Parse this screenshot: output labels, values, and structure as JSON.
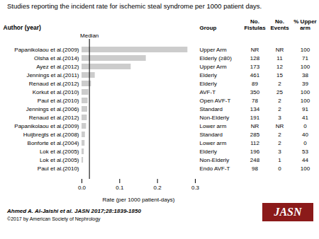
{
  "chart_data": {
    "type": "bar",
    "orientation": "horizontal",
    "title": "Studies reporting the incident rate for ischemic steal syndrome per 1000 patient days.",
    "ylabel": "Author (year)",
    "categories": [
      "Papanikolaou et al.(2009)",
      "Olsha et al.(2014)",
      "Ayez et al.(2012)",
      "Jennings et al.(2011)",
      "Renaud et al.(2012)",
      "Korkut et al.(2010)",
      "Paul et al.(2010)",
      "Jennings et al.(2006)",
      "Renaud et al.(2012)",
      "Papanikolaou et al.(2009)",
      "Huijbregts et al.(2008)",
      "Bonforte et al.(2004)",
      "Lok et al.(2005)",
      "Lok et al.(2005)",
      "Paul et al.(2010)"
    ],
    "values": [
      0.28,
      0.17,
      0.13,
      0.035,
      0.025,
      0.018,
      0.016,
      0.015,
      0.014,
      0.012,
      0.009,
      0.008,
      0.006,
      0.004,
      0.0
    ],
    "color": "#cccccc",
    "xlim": [
      0.0,
      0.3
    ],
    "xticks": [
      {
        "value": 0.0,
        "label": "0.0"
      },
      0.1,
      0.2,
      0.3
    ],
    "xlabel": "Rate (per 1000 patient-days)",
    "grid": false,
    "annotations": [
      {
        "type": "line",
        "x": 0.02,
        "label": "Median",
        "color": "#222222"
      }
    ],
    "table": [
      {
        "header": "Group",
        "values": [
          "Upper Arm",
          "Elderly (≥80)",
          "Upper Arm",
          "Elderly",
          "Elderly",
          "AVF-T",
          "Open AVF-T",
          "Standard",
          "Non-Elderly",
          "Lower arm",
          "Standard",
          "Lower arm",
          "Elderly",
          "Non-Elderly",
          "Endo AVF-T"
        ]
      },
      {
        "header": "No.\nFistulas",
        "values": [
          "NR",
          "128",
          "173",
          "461",
          "89",
          "350",
          "78",
          "134",
          "191",
          "NR",
          "285",
          "112",
          "196",
          "248",
          "98"
        ]
      },
      {
        "header": "No.\nEvents",
        "values": [
          "NR",
          "11",
          "12",
          "15",
          "2",
          "25",
          "2",
          "2",
          "3",
          "NR",
          "2",
          "2",
          "3",
          "1",
          "0"
        ]
      },
      {
        "header": "% Upper\narm",
        "values": [
          "100",
          "71",
          "100",
          "38",
          "39",
          "100",
          "100",
          "91",
          "41",
          "0",
          "40",
          "0",
          "53",
          "44",
          "100"
        ]
      }
    ],
    "footer": {
      "citation": "Ahmed A. Al-Jaishi et al. JASN 2017;28:1839-1850",
      "copyright": "©2017 by American Society of Nephrology",
      "logo": {
        "text": "JASN",
        "color": "#8b1a1a"
      }
    }
  }
}
